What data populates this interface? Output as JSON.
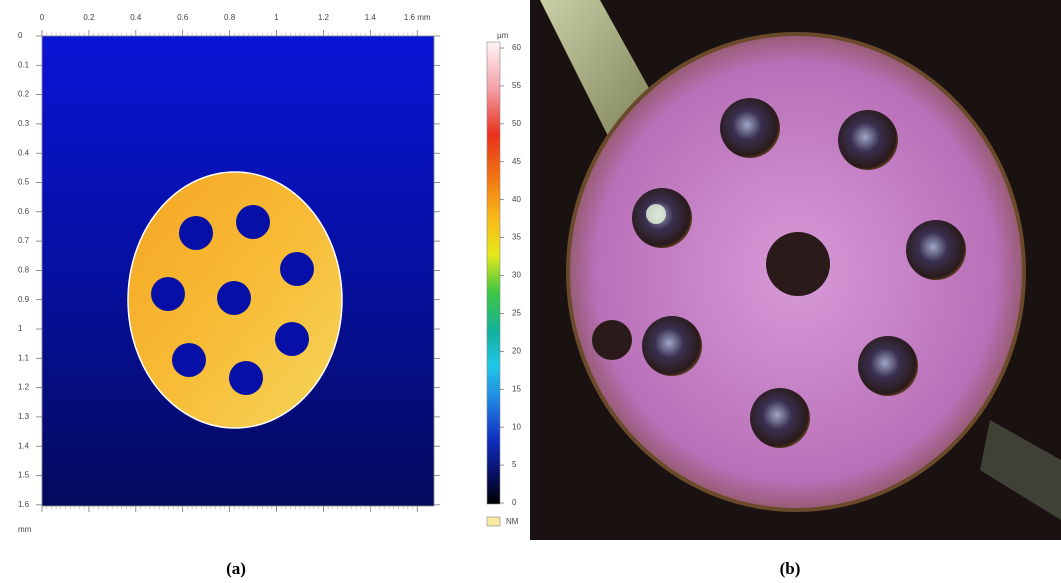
{
  "panel_a": {
    "x_ticks": [
      "0",
      "0.2",
      "0.4",
      "0.6",
      "0.8",
      "1",
      "1.2",
      "1.4",
      "1.6 mm"
    ],
    "y_ticks": [
      "0",
      "0.1",
      "0.2",
      "0.3",
      "0.4",
      "0.5",
      "0.6",
      "0.7",
      "0.8",
      "0.9",
      "1",
      "1.1",
      "1.2",
      "1.3",
      "1.4",
      "1.5",
      "1.6"
    ],
    "y_unit": "mm",
    "colorbar": {
      "unit": "µm",
      "ticks": [
        "60",
        "55",
        "50",
        "45",
        "40",
        "35",
        "30",
        "25",
        "20",
        "15",
        "10",
        "5",
        "0"
      ],
      "no_measure": "NM"
    },
    "caption": "(a)"
  },
  "panel_b": {
    "caption": "(b)"
  }
}
